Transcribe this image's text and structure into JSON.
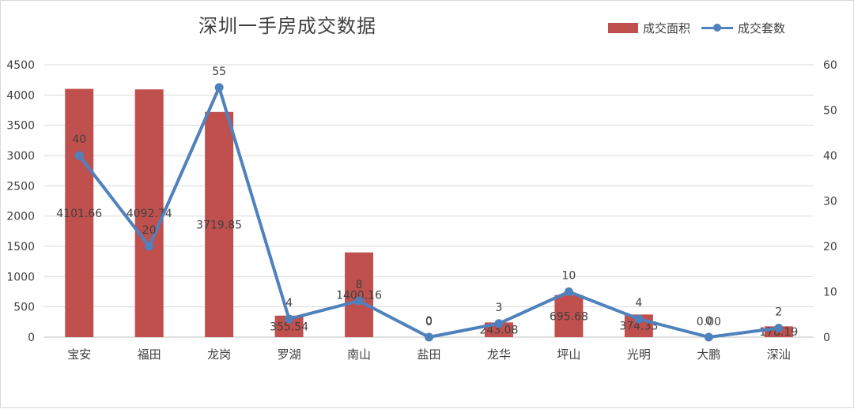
{
  "chart_data": {
    "type": "bar",
    "title": "深圳一手房成交数据",
    "categories": [
      "宝安",
      "福田",
      "龙岗",
      "罗湖",
      "南山",
      "盐田",
      "龙华",
      "坪山",
      "光明",
      "大鹏",
      "深汕"
    ],
    "series": [
      {
        "name": "成交面积",
        "type": "bar",
        "axis": "left",
        "color": "#c0504d",
        "values": [
          4101.66,
          4092.74,
          3719.85,
          355.54,
          1400.16,
          0,
          243.08,
          695.68,
          374.33,
          0.0,
          178.19
        ],
        "labels": [
          "4101.66",
          "4092.74",
          "3719.85",
          "355.54",
          "1400.16",
          "0",
          "243.08",
          "695.68",
          "374.33",
          "0.00",
          "178.19"
        ]
      },
      {
        "name": "成交套数",
        "type": "line",
        "axis": "right",
        "color": "#4f81bd",
        "values": [
          40,
          20,
          55,
          4,
          8,
          0,
          3,
          10,
          4,
          0,
          2
        ],
        "labels": [
          "40",
          "20",
          "55",
          "4",
          "8",
          "0",
          "3",
          "10",
          "4",
          "0",
          "2"
        ]
      }
    ],
    "ylim_left": [
      0,
      4500
    ],
    "yticks_left": [
      0,
      500,
      1000,
      1500,
      2000,
      2500,
      3000,
      3500,
      4000,
      4500
    ],
    "ylim_right": [
      0,
      60
    ],
    "yticks_right": [
      0,
      10,
      20,
      30,
      40,
      50,
      60
    ],
    "grid": true,
    "legend_position": "top-right"
  }
}
